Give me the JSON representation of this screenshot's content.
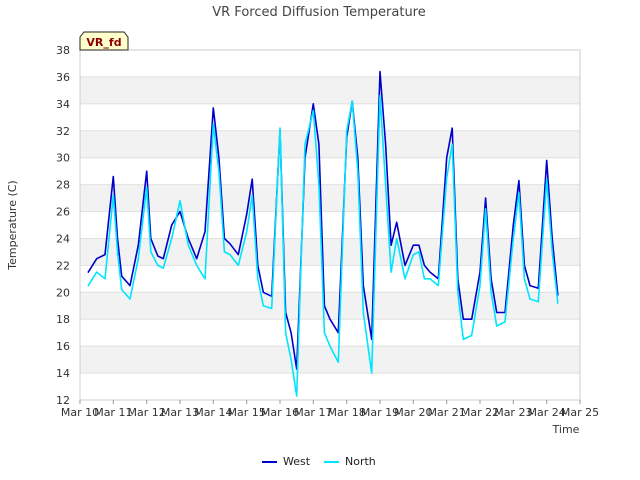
{
  "chart_data": {
    "type": "line",
    "title": "VR Forced Diffusion Temperature",
    "xlabel": "Time",
    "ylabel": "Temperature (C)",
    "badge": "VR_fd",
    "xlim": [
      "2024-03-10",
      "2024-03-25"
    ],
    "ylim": [
      12,
      38
    ],
    "y_ticks": [
      12,
      14,
      16,
      18,
      20,
      22,
      24,
      26,
      28,
      30,
      32,
      34,
      36,
      38
    ],
    "x_ticks": [
      "Mar 10",
      "Mar 11",
      "Mar 12",
      "Mar 13",
      "Mar 14",
      "Mar 15",
      "Mar 16",
      "Mar 17",
      "Mar 18",
      "Mar 19",
      "Mar 20",
      "Mar 21",
      "Mar 22",
      "Mar 23",
      "Mar 24",
      "Mar 25"
    ],
    "x_tick_dates": [
      "2024-03-10",
      "2024-03-11",
      "2024-03-12",
      "2024-03-13",
      "2024-03-14",
      "2024-03-15",
      "2024-03-16",
      "2024-03-17",
      "2024-03-18",
      "2024-03-19",
      "2024-03-20",
      "2024-03-21",
      "2024-03-22",
      "2024-03-23",
      "2024-03-24",
      "2024-03-25"
    ],
    "grid": "horizontal bands",
    "legend_position": "bottom",
    "series": [
      {
        "name": "West",
        "color": "#0000cc",
        "x": [
          "2024-03-10 06:00",
          "2024-03-10 12:00",
          "2024-03-10 18:00",
          "2024-03-11 00:00",
          "2024-03-11 03:00",
          "2024-03-11 06:00",
          "2024-03-11 12:00",
          "2024-03-11 18:00",
          "2024-03-12 00:00",
          "2024-03-12 03:00",
          "2024-03-12 08:00",
          "2024-03-12 12:00",
          "2024-03-12 18:00",
          "2024-03-13 00:00",
          "2024-03-13 06:00",
          "2024-03-13 12:00",
          "2024-03-13 18:00",
          "2024-03-14 00:00",
          "2024-03-14 04:00",
          "2024-03-14 08:00",
          "2024-03-14 12:00",
          "2024-03-14 18:00",
          "2024-03-15 00:00",
          "2024-03-15 04:00",
          "2024-03-15 08:00",
          "2024-03-15 12:00",
          "2024-03-15 18:00",
          "2024-03-16 00:00",
          "2024-03-16 04:00",
          "2024-03-16 08:00",
          "2024-03-16 12:00",
          "2024-03-16 18:00",
          "2024-03-17 00:00",
          "2024-03-17 04:00",
          "2024-03-17 08:00",
          "2024-03-17 12:00",
          "2024-03-17 18:00",
          "2024-03-18 00:00",
          "2024-03-18 04:00",
          "2024-03-18 08:00",
          "2024-03-18 12:00",
          "2024-03-18 18:00",
          "2024-03-19 00:00",
          "2024-03-19 04:00",
          "2024-03-19 08:00",
          "2024-03-19 12:00",
          "2024-03-19 18:00",
          "2024-03-20 00:00",
          "2024-03-20 04:00",
          "2024-03-20 08:00",
          "2024-03-20 12:00",
          "2024-03-20 18:00",
          "2024-03-21 00:00",
          "2024-03-21 04:00",
          "2024-03-21 08:00",
          "2024-03-21 12:00",
          "2024-03-21 18:00",
          "2024-03-22 00:00",
          "2024-03-22 04:00",
          "2024-03-22 08:00",
          "2024-03-22 12:00",
          "2024-03-22 18:00",
          "2024-03-23 00:00",
          "2024-03-23 04:00",
          "2024-03-23 08:00",
          "2024-03-23 12:00",
          "2024-03-23 18:00",
          "2024-03-24 00:00",
          "2024-03-24 04:00",
          "2024-03-24 08:00"
        ],
        "y": [
          21.5,
          22.5,
          22.8,
          28.6,
          24.0,
          21.2,
          20.5,
          23.5,
          29.0,
          24.0,
          22.7,
          22.5,
          25.0,
          26.0,
          24.0,
          22.5,
          24.5,
          33.7,
          30.0,
          24.0,
          23.6,
          22.8,
          25.8,
          28.4,
          22.0,
          20.0,
          19.7,
          32.0,
          18.5,
          17.0,
          14.3,
          30.0,
          34.0,
          31.0,
          19.0,
          18.0,
          17.0,
          31.5,
          34.2,
          30.0,
          20.5,
          16.5,
          36.4,
          31.0,
          23.5,
          25.2,
          22.0,
          23.5,
          23.5,
          22.0,
          21.5,
          21.0,
          30.0,
          32.2,
          21.0,
          18.0,
          18.0,
          21.5,
          27.0,
          21.0,
          18.5,
          18.5,
          25.0,
          28.3,
          22.0,
          20.5,
          20.3,
          29.8,
          24.0,
          19.8
        ]
      },
      {
        "name": "North",
        "color": "#00e5ff",
        "x": [
          "2024-03-10 06:00",
          "2024-03-10 12:00",
          "2024-03-10 18:00",
          "2024-03-11 00:00",
          "2024-03-11 03:00",
          "2024-03-11 06:00",
          "2024-03-11 12:00",
          "2024-03-11 18:00",
          "2024-03-12 00:00",
          "2024-03-12 03:00",
          "2024-03-12 08:00",
          "2024-03-12 12:00",
          "2024-03-12 18:00",
          "2024-03-13 00:00",
          "2024-03-13 06:00",
          "2024-03-13 12:00",
          "2024-03-13 18:00",
          "2024-03-14 00:00",
          "2024-03-14 04:00",
          "2024-03-14 08:00",
          "2024-03-14 12:00",
          "2024-03-14 18:00",
          "2024-03-15 00:00",
          "2024-03-15 04:00",
          "2024-03-15 08:00",
          "2024-03-15 12:00",
          "2024-03-15 18:00",
          "2024-03-16 00:00",
          "2024-03-16 04:00",
          "2024-03-16 08:00",
          "2024-03-16 12:00",
          "2024-03-16 18:00",
          "2024-03-17 00:00",
          "2024-03-17 04:00",
          "2024-03-17 08:00",
          "2024-03-17 12:00",
          "2024-03-17 18:00",
          "2024-03-18 00:00",
          "2024-03-18 04:00",
          "2024-03-18 08:00",
          "2024-03-18 12:00",
          "2024-03-18 18:00",
          "2024-03-19 00:00",
          "2024-03-19 04:00",
          "2024-03-19 08:00",
          "2024-03-19 12:00",
          "2024-03-19 18:00",
          "2024-03-20 00:00",
          "2024-03-20 04:00",
          "2024-03-20 08:00",
          "2024-03-20 12:00",
          "2024-03-20 18:00",
          "2024-03-21 00:00",
          "2024-03-21 04:00",
          "2024-03-21 08:00",
          "2024-03-21 12:00",
          "2024-03-21 18:00",
          "2024-03-22 00:00",
          "2024-03-22 04:00",
          "2024-03-22 08:00",
          "2024-03-22 12:00",
          "2024-03-22 18:00",
          "2024-03-23 00:00",
          "2024-03-23 04:00",
          "2024-03-23 08:00",
          "2024-03-23 12:00",
          "2024-03-23 18:00",
          "2024-03-24 00:00",
          "2024-03-24 04:00",
          "2024-03-24 08:00"
        ],
        "y": [
          20.5,
          21.5,
          21.0,
          27.2,
          23.0,
          20.2,
          19.5,
          22.5,
          27.8,
          23.0,
          22.0,
          21.8,
          24.0,
          26.8,
          23.5,
          22.0,
          21.0,
          32.5,
          29.0,
          23.0,
          22.8,
          22.0,
          24.5,
          27.2,
          21.0,
          19.0,
          18.8,
          32.2,
          17.0,
          15.0,
          12.3,
          31.0,
          33.5,
          28.0,
          17.0,
          16.0,
          14.8,
          32.0,
          34.2,
          29.0,
          18.5,
          14.0,
          34.6,
          28.0,
          21.5,
          24.0,
          21.0,
          22.8,
          23.0,
          21.0,
          21.0,
          20.5,
          28.5,
          31.0,
          20.0,
          16.5,
          16.8,
          20.5,
          26.2,
          20.0,
          17.5,
          17.8,
          24.0,
          27.4,
          21.0,
          19.5,
          19.3,
          28.4,
          23.0,
          19.2
        ]
      }
    ]
  }
}
